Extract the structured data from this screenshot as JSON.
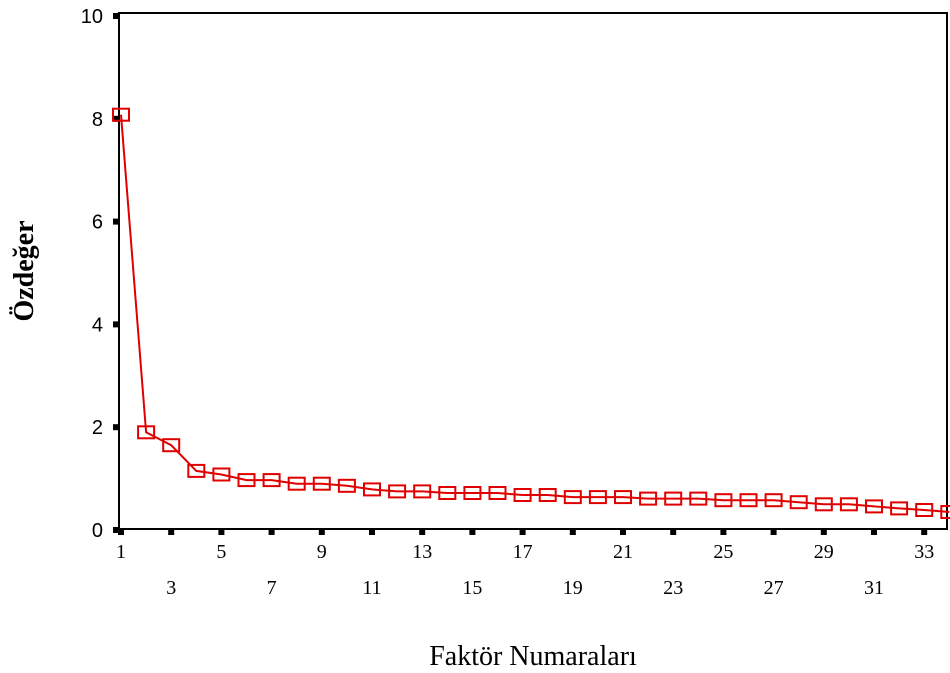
{
  "chart_data": {
    "type": "line",
    "title": "",
    "xlabel": "Faktör Numaraları",
    "ylabel": "Özdeğer",
    "x_major_ticks": [
      "1",
      "5",
      "9",
      "13",
      "17",
      "21",
      "25",
      "29",
      "33"
    ],
    "x_minor_ticks": [
      "3",
      "7",
      "11",
      "15",
      "19",
      "23",
      "27",
      "31"
    ],
    "y_ticks": [
      "0",
      "2",
      "4",
      "6",
      "8",
      "10"
    ],
    "ylim": [
      0,
      10
    ],
    "xlim": [
      1,
      34
    ],
    "grid": false,
    "marker": "square",
    "line_color": "#e00000",
    "series": [
      {
        "x": [
          1,
          2,
          3,
          4,
          5,
          6,
          7,
          8,
          9,
          10,
          11,
          12,
          13,
          14,
          15,
          16,
          17,
          18,
          19,
          20,
          21,
          22,
          23,
          24,
          25,
          26,
          27,
          28,
          29,
          30,
          31,
          32,
          33,
          34
        ],
        "values": [
          8.08,
          1.9,
          1.65,
          1.15,
          1.08,
          0.97,
          0.97,
          0.9,
          0.9,
          0.86,
          0.79,
          0.75,
          0.75,
          0.72,
          0.72,
          0.72,
          0.68,
          0.68,
          0.64,
          0.64,
          0.64,
          0.61,
          0.61,
          0.61,
          0.58,
          0.58,
          0.58,
          0.54,
          0.5,
          0.5,
          0.46,
          0.42,
          0.39,
          0.35
        ]
      }
    ]
  }
}
